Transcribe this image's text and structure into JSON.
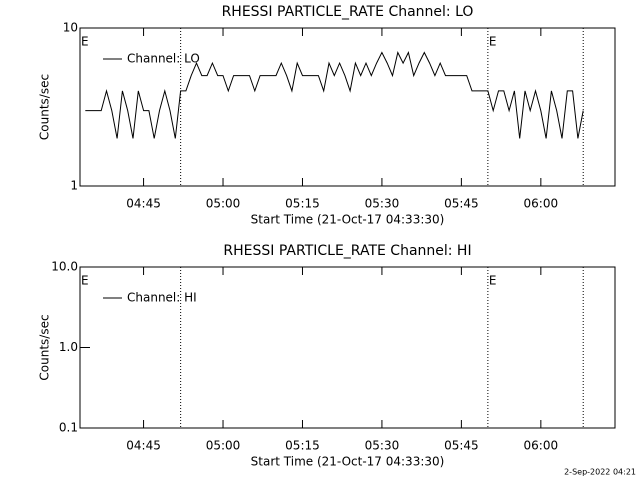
{
  "chart_data": [
    {
      "type": "line",
      "title": "RHESSI PARTICLE_RATE Channel: LO",
      "xlabel": "Start Time (21-Oct-17 04:33:30)",
      "ylabel": "Counts/sec",
      "log_y": true,
      "legend": "upper left",
      "xlim": [
        "04:33",
        "06:14"
      ],
      "xticks": [
        "04:45",
        "05:00",
        "05:15",
        "05:30",
        "05:45",
        "06:00"
      ],
      "ylim": [
        1,
        10
      ],
      "yticks": [
        1,
        10
      ],
      "vlines": [
        "04:52",
        "05:50",
        "06:08"
      ],
      "annotations": [
        {
          "x": "04:33",
          "text": "E"
        },
        {
          "x": "05:50",
          "text": "E"
        }
      ],
      "x": [
        "04:34",
        "04:35",
        "04:36",
        "04:37",
        "04:38",
        "04:39",
        "04:40",
        "04:41",
        "04:42",
        "04:43",
        "04:44",
        "04:45",
        "04:46",
        "04:47",
        "04:48",
        "04:49",
        "04:50",
        "04:51",
        "04:52",
        "04:53",
        "04:54",
        "04:55",
        "04:56",
        "04:57",
        "04:58",
        "04:59",
        "05:00",
        "05:01",
        "05:02",
        "05:03",
        "05:04",
        "05:05",
        "05:06",
        "05:07",
        "05:08",
        "05:09",
        "05:10",
        "05:11",
        "05:12",
        "05:13",
        "05:14",
        "05:15",
        "05:16",
        "05:17",
        "05:18",
        "05:19",
        "05:20",
        "05:21",
        "05:22",
        "05:23",
        "05:24",
        "05:25",
        "05:26",
        "05:27",
        "05:28",
        "05:29",
        "05:30",
        "05:31",
        "05:32",
        "05:33",
        "05:34",
        "05:35",
        "05:36",
        "05:37",
        "05:38",
        "05:39",
        "05:40",
        "05:41",
        "05:42",
        "05:43",
        "05:44",
        "05:45",
        "05:46",
        "05:47",
        "05:48",
        "05:49",
        "05:50",
        "05:51",
        "05:52",
        "05:53",
        "05:54",
        "05:55",
        "05:56",
        "05:57",
        "05:58",
        "05:59",
        "06:00",
        "06:01",
        "06:02",
        "06:03",
        "06:04",
        "06:05",
        "06:06",
        "06:07",
        "06:08"
      ],
      "series": [
        {
          "name": "Channel: LO",
          "color": "#000000",
          "values": [
            3,
            3,
            3,
            3,
            4,
            3,
            2,
            4,
            3,
            2,
            4,
            3,
            3,
            2,
            3,
            4,
            3,
            2,
            4,
            4,
            5,
            6,
            5,
            5,
            6,
            5,
            5,
            4,
            5,
            5,
            5,
            5,
            4,
            5,
            5,
            5,
            5,
            6,
            5,
            4,
            6,
            5,
            5,
            5,
            5,
            4,
            6,
            5,
            6,
            5,
            4,
            6,
            5,
            6,
            5,
            6,
            7,
            6,
            5,
            7,
            6,
            7,
            5,
            6,
            7,
            6,
            5,
            6,
            5,
            5,
            5,
            5,
            5,
            4,
            4,
            4,
            4,
            3,
            4,
            4,
            3,
            4,
            2,
            4,
            3,
            4,
            3,
            2,
            4,
            3,
            2,
            4,
            4,
            2,
            3
          ]
        }
      ]
    },
    {
      "type": "line",
      "title": "RHESSI PARTICLE_RATE Channel: HI",
      "xlabel": "Start Time (21-Oct-17 04:33:30)",
      "ylabel": "Counts/sec",
      "log_y": true,
      "legend": "upper left",
      "xlim": [
        "04:33",
        "06:14"
      ],
      "xticks": [
        "04:45",
        "05:00",
        "05:15",
        "05:30",
        "05:45",
        "06:00"
      ],
      "ylim": [
        0.1,
        10
      ],
      "yticks": [
        0.1,
        {
          "value": 1,
          "label": "1.0"
        },
        {
          "value": 10,
          "label": "10.0"
        }
      ],
      "vlines": [
        "04:52",
        "05:50",
        "06:08"
      ],
      "annotations": [
        {
          "x": "04:33",
          "text": "E"
        },
        {
          "x": "05:50",
          "text": "E"
        }
      ],
      "x": [],
      "series": [
        {
          "name": "Channel: HI",
          "color": "#000000",
          "values": []
        }
      ]
    }
  ],
  "footer": "2-Sep-2022 04:21"
}
